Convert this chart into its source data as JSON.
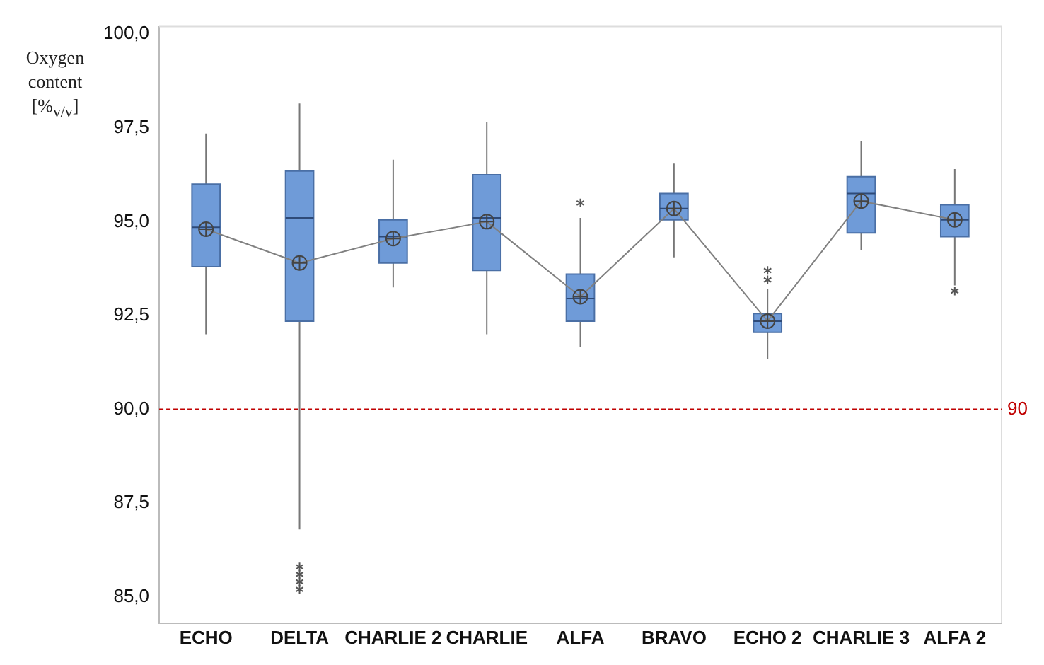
{
  "chart_data": {
    "type": "box",
    "ylabel": "Oxygen content [%$_{v/v}$]",
    "categories": [
      "ECHO",
      "DELTA",
      "CHARLIE 2",
      "CHARLIE",
      "ALFA",
      "BRAVO",
      "ECHO 2",
      "CHARLIE 3",
      "ALFA 2"
    ],
    "series": [
      {
        "color": "#6f9bd8",
        "boxes": [
          {
            "low": 92.0,
            "q1": 93.8,
            "median": 94.85,
            "q3": 96.0,
            "high": 97.35,
            "mean": 94.8
          },
          {
            "low": 86.8,
            "q1": 92.35,
            "median": 95.1,
            "q3": 96.35,
            "high": 98.15,
            "mean": 93.9,
            "outliers": [
              85.8,
              85.6,
              85.4,
              85.2
            ]
          },
          {
            "low": 93.25,
            "q1": 93.9,
            "median": 94.6,
            "q3": 95.05,
            "high": 96.65,
            "mean": 94.55
          },
          {
            "low": 92.0,
            "q1": 93.7,
            "median": 95.1,
            "q3": 96.25,
            "high": 97.65,
            "mean": 95.0
          },
          {
            "low": 91.65,
            "q1": 92.35,
            "median": 92.95,
            "q3": 93.6,
            "high": 95.1,
            "mean": 93.0,
            "outliers": [
              95.5
            ]
          },
          {
            "low": 94.05,
            "q1": 95.05,
            "median": 95.35,
            "q3": 95.75,
            "high": 96.55,
            "mean": 95.35
          },
          {
            "low": 91.35,
            "q1": 92.05,
            "median": 92.35,
            "q3": 92.55,
            "high": 93.2,
            "mean": 92.35,
            "outliers": [
              93.45,
              93.7
            ]
          },
          {
            "low": 94.25,
            "q1": 94.7,
            "median": 95.75,
            "q3": 96.2,
            "high": 97.15,
            "mean": 95.55
          },
          {
            "low": 93.3,
            "q1": 94.6,
            "median": 95.05,
            "q3": 95.45,
            "high": 96.4,
            "mean": 95.05,
            "outliers": [
              93.15
            ]
          }
        ]
      },
      {
        "type": "line",
        "color": "#808080",
        "marker": "none",
        "values": [
          94.8,
          93.9,
          94.55,
          95.0,
          93.0,
          95.35,
          92.35,
          95.55,
          95.05
        ]
      }
    ],
    "ylim": [
      84.3,
      100.2
    ],
    "yticks": [
      {
        "value": 85,
        "label": "85,0"
      },
      {
        "value": 87.5,
        "label": "87,5"
      },
      {
        "value": 90,
        "label": "90,0"
      },
      {
        "value": 92.5,
        "label": "92,5"
      },
      {
        "value": 95,
        "label": "95,0"
      },
      {
        "value": 97.5,
        "label": "97,5"
      },
      {
        "value": 100,
        "label": "100,0"
      }
    ],
    "ref_lines": [
      {
        "axis": "y",
        "value": 90,
        "label": "90",
        "color": "#c00000",
        "line_style": "dashed"
      }
    ],
    "grid": false,
    "legend": false
  }
}
